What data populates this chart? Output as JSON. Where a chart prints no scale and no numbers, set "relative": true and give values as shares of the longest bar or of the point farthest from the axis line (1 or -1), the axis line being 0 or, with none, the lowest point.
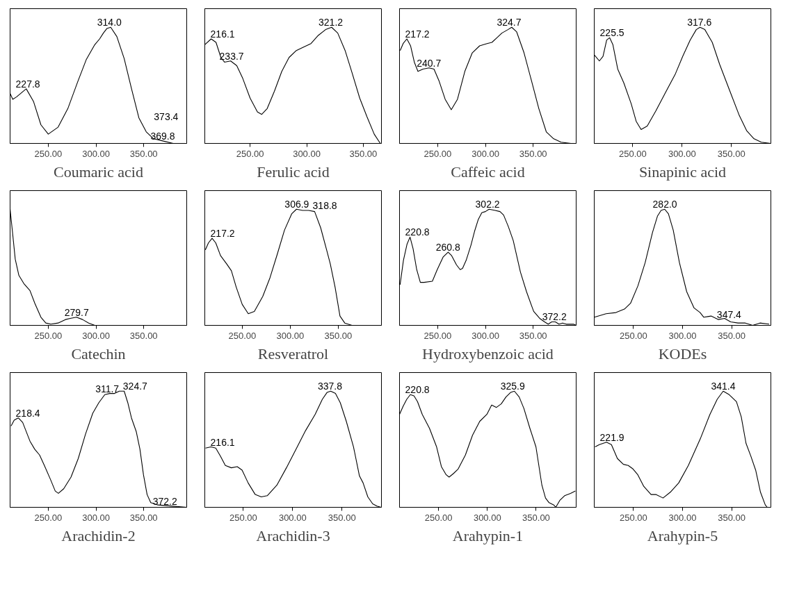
{
  "chart_data": [
    {
      "type": "line",
      "relative": true,
      "xlabel": "Coumaric acid",
      "xlim": [
        210,
        395
      ],
      "xticks": [
        {
          "value": 250,
          "label": "250.00"
        },
        {
          "value": 300,
          "label": "300.00"
        },
        {
          "value": 350,
          "label": "350.00"
        }
      ],
      "x": [
        210,
        212.8,
        216.7,
        226.9,
        234.6,
        242.3,
        250,
        260.3,
        270.5,
        280.8,
        289.7,
        298.7,
        303.8,
        307.7,
        311.5,
        315.4,
        321.8,
        329.5,
        337.2,
        344.9,
        352.6,
        360.3,
        370.5,
        380.8,
        395
      ],
      "series": [
        {
          "color": "#000000",
          "values": [
            0.43,
            0.38,
            0.4,
            0.47,
            0.36,
            0.16,
            0.08,
            0.14,
            0.3,
            0.53,
            0.72,
            0.85,
            0.9,
            0.95,
            0.99,
            1.0,
            0.92,
            0.73,
            0.47,
            0.22,
            0.1,
            0.04,
            0.02,
            0.0,
            0.0
          ]
        }
      ],
      "annotations": [
        {
          "text": "227.8",
          "x": 227.8,
          "y": 0.47
        },
        {
          "text": "314.0",
          "x": 314.0,
          "y": 1.0
        },
        {
          "text": "369.8",
          "x": 369.8,
          "y": 0.02
        },
        {
          "text": "373.4",
          "x": 373.4,
          "y": 0.01
        }
      ]
    },
    {
      "type": "line",
      "relative": true,
      "xlabel": "Ferulic acid",
      "xlim": [
        210,
        366
      ],
      "xticks": [
        {
          "value": 250,
          "label": "250.00"
        },
        {
          "value": 300,
          "label": "300.00"
        },
        {
          "value": 350,
          "label": "350.00"
        }
      ],
      "x": [
        210,
        215.6,
        219.9,
        224.2,
        227.4,
        232.8,
        238.2,
        243.5,
        250,
        256.5,
        260.3,
        265.1,
        271.5,
        278,
        284.4,
        290.9,
        297.3,
        303.8,
        310.2,
        316.7,
        322,
        327.4,
        333.9,
        340.3,
        346.8,
        353.2,
        359.6,
        365
      ],
      "series": [
        {
          "color": "#000000",
          "values": [
            0.85,
            0.9,
            0.87,
            0.74,
            0.7,
            0.71,
            0.67,
            0.56,
            0.39,
            0.27,
            0.25,
            0.3,
            0.45,
            0.62,
            0.74,
            0.8,
            0.83,
            0.86,
            0.93,
            0.98,
            1.0,
            0.95,
            0.8,
            0.6,
            0.39,
            0.23,
            0.08,
            0.0
          ]
        }
      ],
      "annotations": [
        {
          "text": "216.1",
          "x": 216.1,
          "y": 0.9
        },
        {
          "text": "233.7",
          "x": 233.7,
          "y": 0.71
        },
        {
          "text": "321.2",
          "x": 321.2,
          "y": 1.0
        }
      ]
    },
    {
      "type": "line",
      "relative": true,
      "xlabel": "Caffeic acid",
      "xlim": [
        210,
        395
      ],
      "xticks": [
        {
          "value": 250,
          "label": "250.00"
        },
        {
          "value": 300,
          "label": "300.00"
        },
        {
          "value": 350,
          "label": "350.00"
        }
      ],
      "x": [
        210.7,
        213.8,
        217.7,
        221.6,
        225.5,
        229.3,
        234.5,
        241,
        246.1,
        251.3,
        257.8,
        264.2,
        270.7,
        278.4,
        286.2,
        293.9,
        301.7,
        306.8,
        312,
        317.2,
        323.6,
        327.5,
        332.7,
        340.4,
        348.2,
        355.9,
        363.7,
        371.4,
        379.2,
        389.5,
        395
      ],
      "series": [
        {
          "color": "#000000",
          "values": [
            0.8,
            0.86,
            0.9,
            0.84,
            0.7,
            0.62,
            0.64,
            0.65,
            0.64,
            0.54,
            0.38,
            0.29,
            0.38,
            0.62,
            0.78,
            0.84,
            0.86,
            0.87,
            0.91,
            0.95,
            0.98,
            1.0,
            0.96,
            0.78,
            0.54,
            0.3,
            0.1,
            0.04,
            0.01,
            0.0,
            0.0
          ]
        }
      ],
      "annotations": [
        {
          "text": "217.2",
          "x": 217.2,
          "y": 0.9
        },
        {
          "text": "240.7",
          "x": 240.7,
          "y": 0.65
        },
        {
          "text": "324.7",
          "x": 324.7,
          "y": 1.0
        }
      ]
    },
    {
      "type": "line",
      "relative": true,
      "xlabel": "Sinapinic acid",
      "xlim": [
        211,
        390
      ],
      "xticks": [
        {
          "value": 250,
          "label": "250.00"
        },
        {
          "value": 300,
          "label": "300.00"
        },
        {
          "value": 350,
          "label": "350.00"
        }
      ],
      "x": [
        211.2,
        216.2,
        219.9,
        223.6,
        226.6,
        229.9,
        234.8,
        241,
        248.5,
        253.5,
        258.5,
        264.7,
        273.4,
        283.3,
        293.3,
        300.7,
        308.2,
        314.4,
        318.2,
        323.1,
        330.6,
        338.1,
        348,
        358,
        365.4,
        372.9,
        380.3,
        389.8
      ],
      "series": [
        {
          "color": "#000000",
          "values": [
            0.76,
            0.71,
            0.75,
            0.89,
            0.91,
            0.85,
            0.64,
            0.52,
            0.34,
            0.19,
            0.12,
            0.15,
            0.28,
            0.44,
            0.6,
            0.75,
            0.89,
            0.98,
            1.0,
            0.98,
            0.87,
            0.68,
            0.46,
            0.24,
            0.11,
            0.04,
            0.01,
            0.0
          ]
        }
      ],
      "annotations": [
        {
          "text": "225.5",
          "x": 225.5,
          "y": 0.91
        },
        {
          "text": "317.6",
          "x": 317.6,
          "y": 1.0
        }
      ]
    },
    {
      "type": "line",
      "relative": true,
      "xlabel": "Catechin",
      "xlim": [
        210,
        395
      ],
      "xticks": [
        {
          "value": 250,
          "label": "250.00"
        },
        {
          "value": 300,
          "label": "300.00"
        },
        {
          "value": 350,
          "label": "350.00"
        }
      ],
      "x": [
        210,
        212.8,
        215.4,
        219.2,
        224.4,
        230.8,
        235.9,
        242.3,
        247.4,
        252.6,
        260.3,
        268,
        273,
        279.5,
        285.9,
        292.3,
        298.7,
        329.5,
        395
      ],
      "series": [
        {
          "color": "#000000",
          "values": [
            1.0,
            0.78,
            0.57,
            0.43,
            0.36,
            0.3,
            0.19,
            0.07,
            0.02,
            0.01,
            0.02,
            0.05,
            0.06,
            0.07,
            0.05,
            0.02,
            0.0,
            0.0,
            0.0
          ]
        }
      ],
      "annotations": [
        {
          "text": "279.7",
          "x": 279.7,
          "y": 0.07
        }
      ]
    },
    {
      "type": "line",
      "relative": true,
      "xlabel": "Resveratrol",
      "xlim": [
        211,
        395
      ],
      "xticks": [
        {
          "value": 250,
          "label": "250.00"
        },
        {
          "value": 300,
          "label": "300.00"
        },
        {
          "value": 350,
          "label": "350.00"
        }
      ],
      "x": [
        211.6,
        214.8,
        218.6,
        222.4,
        227.4,
        233.7,
        238.7,
        243.7,
        250,
        256.3,
        262.6,
        271.4,
        278.9,
        286.4,
        294,
        301.5,
        306.5,
        312.8,
        319.1,
        325.4,
        331.7,
        337.9,
        341.7,
        346.7,
        351.8,
        356.8,
        364.3,
        395
      ],
      "series": [
        {
          "color": "#000000",
          "values": [
            0.65,
            0.71,
            0.75,
            0.71,
            0.6,
            0.53,
            0.47,
            0.33,
            0.18,
            0.1,
            0.12,
            0.25,
            0.41,
            0.61,
            0.82,
            0.96,
            1.0,
            0.99,
            0.99,
            0.98,
            0.84,
            0.65,
            0.53,
            0.33,
            0.08,
            0.02,
            0.0,
            0.0
          ]
        }
      ],
      "annotations": [
        {
          "text": "217.2",
          "x": 217.2,
          "y": 0.75
        },
        {
          "text": "306.9",
          "x": 306.9,
          "y": 1.0
        },
        {
          "text": "318.8",
          "x": 318.8,
          "y": 0.99
        }
      ]
    },
    {
      "type": "line",
      "relative": true,
      "xlabel": "Hydroxybenzoic acid",
      "xlim": [
        210,
        395
      ],
      "xticks": [
        {
          "value": 250,
          "label": "250.00"
        },
        {
          "value": 300,
          "label": "300.00"
        },
        {
          "value": 350,
          "label": "350.00"
        }
      ],
      "x": [
        210.6,
        214.1,
        217.9,
        221,
        224.2,
        228,
        231.8,
        235.6,
        244.4,
        249.5,
        255.8,
        260.9,
        264.6,
        269.7,
        273.5,
        276,
        279.8,
        284.8,
        288.6,
        292.4,
        296.2,
        300,
        303.8,
        310.1,
        315.2,
        319,
        324,
        329.1,
        336.6,
        343,
        350.5,
        356.8,
        361.9,
        365.7,
        369.4,
        373.2,
        377,
        380.8,
        384.6,
        388.4,
        392.2,
        395
      ],
      "series": [
        {
          "color": "#000000",
          "values": [
            0.35,
            0.56,
            0.7,
            0.76,
            0.66,
            0.48,
            0.37,
            0.37,
            0.38,
            0.48,
            0.59,
            0.63,
            0.6,
            0.52,
            0.48,
            0.49,
            0.56,
            0.69,
            0.81,
            0.91,
            0.97,
            0.98,
            1.0,
            0.99,
            0.98,
            0.95,
            0.85,
            0.73,
            0.46,
            0.29,
            0.12,
            0.06,
            0.03,
            0.01,
            0.03,
            0.03,
            0.01,
            0.02,
            0.01,
            0.01,
            0.01,
            0.0
          ]
        }
      ],
      "annotations": [
        {
          "text": "220.8",
          "x": 220.8,
          "y": 0.76
        },
        {
          "text": "260.8",
          "x": 260.8,
          "y": 0.63
        },
        {
          "text": "302.2",
          "x": 302.2,
          "y": 1.0
        },
        {
          "text": "372.2",
          "x": 372.2,
          "y": 0.03
        }
      ]
    },
    {
      "type": "line",
      "relative": true,
      "xlabel": "KODEs",
      "xlim": [
        210,
        390
      ],
      "xticks": [
        {
          "value": 250,
          "label": "250.00"
        },
        {
          "value": 300,
          "label": "300.00"
        },
        {
          "value": 350,
          "label": "350.00"
        }
      ],
      "x": [
        210.2,
        222.1,
        232.1,
        240.8,
        247,
        254.5,
        261.9,
        269.4,
        274.4,
        278.1,
        281.8,
        285.6,
        290.5,
        296.8,
        304.2,
        311.7,
        317.9,
        321.6,
        329.1,
        336.6,
        342.8,
        349,
        356.5,
        364,
        371.4,
        378.9,
        388.3
      ],
      "series": [
        {
          "color": "#000000",
          "values": [
            0.07,
            0.1,
            0.11,
            0.14,
            0.19,
            0.34,
            0.54,
            0.8,
            0.94,
            0.99,
            1.0,
            0.96,
            0.82,
            0.54,
            0.29,
            0.15,
            0.11,
            0.07,
            0.08,
            0.05,
            0.06,
            0.03,
            0.02,
            0.02,
            0.0,
            0.02,
            0.01
          ]
        }
      ],
      "annotations": [
        {
          "text": "282.0",
          "x": 282.0,
          "y": 1.0
        },
        {
          "text": "347.4",
          "x": 347.4,
          "y": 0.05
        }
      ]
    },
    {
      "type": "line",
      "relative": true,
      "xlabel": "Arachidin-2",
      "xlim": [
        210,
        395
      ],
      "xticks": [
        {
          "value": 250,
          "label": "250.00"
        },
        {
          "value": 300,
          "label": "300.00"
        },
        {
          "value": 350,
          "label": "350.00"
        }
      ],
      "x": [
        211,
        214.3,
        218.6,
        223.2,
        230.8,
        235.8,
        240.9,
        245.9,
        252.3,
        257.3,
        260.6,
        266.2,
        273.8,
        281.4,
        289,
        296.6,
        302.9,
        309.2,
        314.3,
        319.4,
        324.4,
        329.5,
        333.3,
        337.1,
        342.2,
        346,
        349.7,
        353.5,
        357.3,
        364.9,
        380.1,
        395
      ],
      "series": [
        {
          "color": "#000000",
          "values": [
            0.7,
            0.75,
            0.77,
            0.73,
            0.57,
            0.5,
            0.45,
            0.36,
            0.24,
            0.14,
            0.12,
            0.16,
            0.26,
            0.42,
            0.63,
            0.81,
            0.9,
            0.97,
            0.98,
            0.98,
            1.0,
            1.0,
            0.9,
            0.77,
            0.65,
            0.5,
            0.28,
            0.11,
            0.04,
            0.02,
            0.01,
            0.0
          ]
        }
      ],
      "annotations": [
        {
          "text": "218.4",
          "x": 218.4,
          "y": 0.77
        },
        {
          "text": "311.7",
          "x": 311.7,
          "y": 0.98
        },
        {
          "text": "324.7",
          "x": 324.7,
          "y": 1.0
        },
        {
          "text": "372.2",
          "x": 372.2,
          "y": 0.01
        }
      ]
    },
    {
      "type": "line",
      "relative": true,
      "xlabel": "Arachidin-3",
      "xlim": [
        211,
        390
      ],
      "xticks": [
        {
          "value": 250,
          "label": "250.00"
        },
        {
          "value": 300,
          "label": "300.00"
        },
        {
          "value": 350,
          "label": "350.00"
        }
      ],
      "x": [
        211.7,
        217.2,
        222.1,
        226.9,
        231.8,
        237.9,
        243.9,
        248.8,
        254.9,
        262.1,
        268.2,
        274.3,
        284,
        293.7,
        303.4,
        313.1,
        322.8,
        330.1,
        335,
        338.6,
        343.4,
        348.3,
        354.4,
        361.7,
        367.7,
        371.4,
        376.2,
        381.1,
        385.4,
        389.6
      ],
      "series": [
        {
          "color": "#000000",
          "values": [
            0.51,
            0.52,
            0.51,
            0.44,
            0.36,
            0.34,
            0.35,
            0.32,
            0.21,
            0.11,
            0.09,
            0.1,
            0.19,
            0.34,
            0.5,
            0.66,
            0.8,
            0.93,
            0.99,
            1.0,
            0.98,
            0.9,
            0.74,
            0.52,
            0.27,
            0.21,
            0.09,
            0.03,
            0.01,
            0.0
          ]
        }
      ],
      "annotations": [
        {
          "text": "216.1",
          "x": 216.1,
          "y": 0.52
        },
        {
          "text": "337.8",
          "x": 337.8,
          "y": 1.0
        }
      ]
    },
    {
      "type": "line",
      "relative": true,
      "xlabel": "Arahypin-1",
      "xlim": [
        210,
        391
      ],
      "xticks": [
        {
          "value": 250,
          "label": "250.00"
        },
        {
          "value": 300,
          "label": "300.00"
        },
        {
          "value": 350,
          "label": "350.00"
        }
      ],
      "x": [
        210,
        213.7,
        217.4,
        221.1,
        224.8,
        228.4,
        233.3,
        240.7,
        248,
        252.9,
        257.8,
        260.8,
        265.2,
        270.1,
        277.5,
        284.8,
        292.2,
        299.5,
        304.4,
        309.3,
        314.2,
        319.1,
        324,
        327.7,
        332.6,
        337.5,
        343.6,
        349.8,
        355.9,
        359.6,
        363.2,
        368.1,
        370.1,
        374.3,
        379.2,
        385.3,
        390.2
      ],
      "series": [
        {
          "color": "#000000",
          "values": [
            0.8,
            0.87,
            0.93,
            0.97,
            0.96,
            0.91,
            0.8,
            0.68,
            0.52,
            0.35,
            0.28,
            0.26,
            0.29,
            0.33,
            0.45,
            0.62,
            0.74,
            0.8,
            0.88,
            0.86,
            0.89,
            0.95,
            0.99,
            1.0,
            0.95,
            0.85,
            0.68,
            0.52,
            0.19,
            0.08,
            0.04,
            0.02,
            0.0,
            0.06,
            0.1,
            0.12,
            0.14
          ]
        }
      ],
      "annotations": [
        {
          "text": "220.8",
          "x": 220.8,
          "y": 0.97
        },
        {
          "text": "325.9",
          "x": 325.9,
          "y": 1.0
        }
      ]
    },
    {
      "type": "line",
      "relative": true,
      "xlabel": "Arahypin-5",
      "xlim": [
        210,
        390
      ],
      "xticks": [
        {
          "value": 250,
          "label": "250.00"
        },
        {
          "value": 300,
          "label": "300.00"
        },
        {
          "value": 350,
          "label": "350.00"
        }
      ],
      "x": [
        210.8,
        215.2,
        222.5,
        227.5,
        233.6,
        239.7,
        244.6,
        249.5,
        254.4,
        260.5,
        267.9,
        272.8,
        280.1,
        287.5,
        296.1,
        305.9,
        318.1,
        327.9,
        335.3,
        341.4,
        347.5,
        354.9,
        359.8,
        364.7,
        369.6,
        374.5,
        379.4,
        384.3,
        386.3
      ],
      "series": [
        {
          "color": "#000000",
          "values": [
            0.52,
            0.54,
            0.56,
            0.54,
            0.42,
            0.37,
            0.36,
            0.33,
            0.28,
            0.18,
            0.11,
            0.11,
            0.08,
            0.13,
            0.21,
            0.36,
            0.59,
            0.8,
            0.93,
            1.0,
            0.97,
            0.91,
            0.78,
            0.55,
            0.44,
            0.32,
            0.13,
            0.02,
            0.0
          ]
        }
      ],
      "annotations": [
        {
          "text": "221.9",
          "x": 221.9,
          "y": 0.56
        },
        {
          "text": "341.4",
          "x": 341.4,
          "y": 1.0
        }
      ]
    }
  ]
}
